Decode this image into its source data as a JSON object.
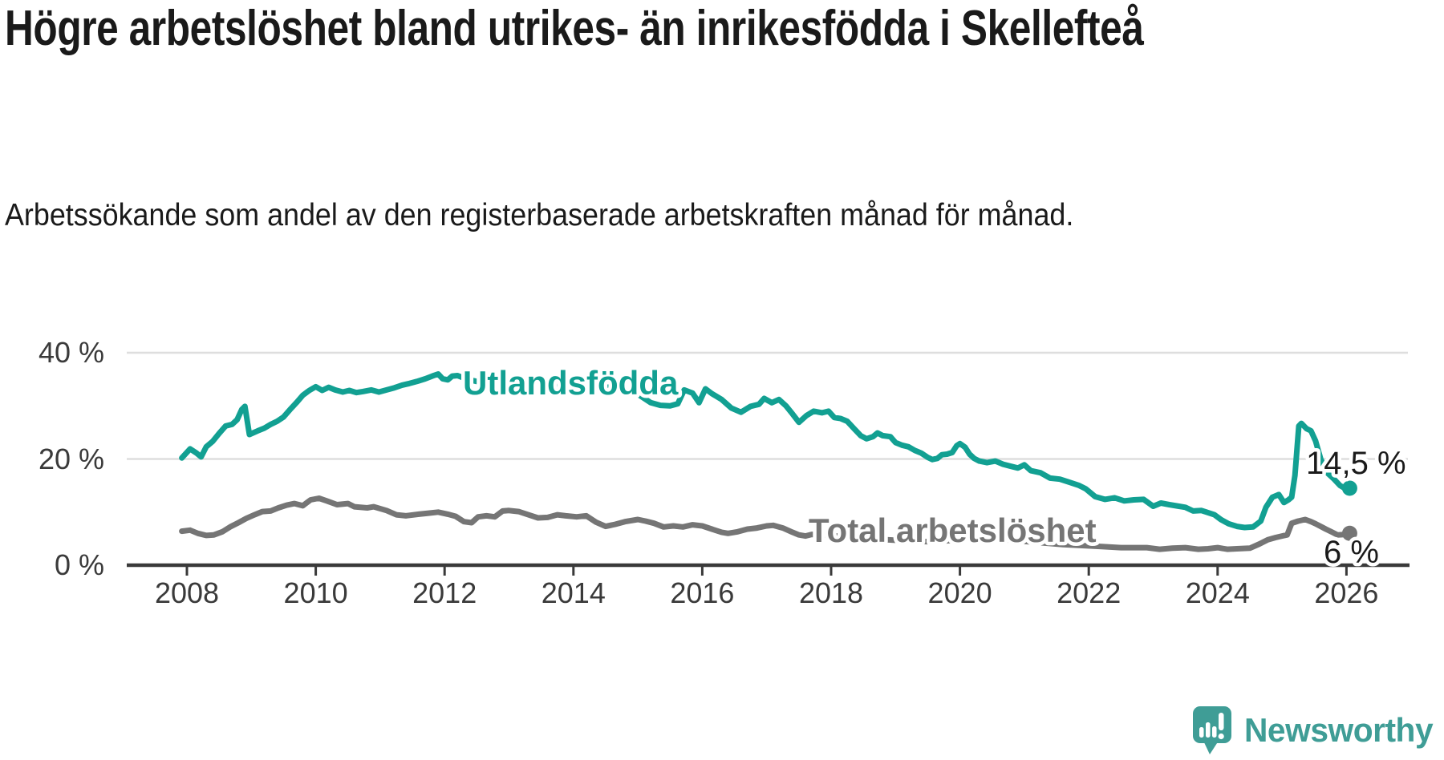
{
  "header": {
    "title": "Högre arbetslöshet bland utrikes- än inrikesfödda i Skellefteå",
    "subtitle": "Arbetssökande som andel av den registerbaserade arbetskraften månad för månad."
  },
  "footer": {
    "brand": "Newsworthy",
    "logo_icon": "newsworthy-speech-bubble-chart-icon"
  },
  "colors": {
    "foreign_born_line": "#12a092",
    "total_line": "#757575",
    "axis": "#3a3a3a",
    "gridline": "#dedede",
    "text": "#1a1a1a",
    "brand_teal": "#3f9d96"
  },
  "chart_data": {
    "type": "line",
    "title": "Högre arbetslöshet bland utrikes- än inrikesfödda i Skellefteå",
    "xlabel": "",
    "ylabel": "Arbetssökande som andel av den registerbaserade arbetskraften",
    "x_unit": "year (monthly observations)",
    "xlim": [
      2007.8,
      2026.35
    ],
    "ylim": [
      0,
      42
    ],
    "grid": "horizontal",
    "legend_position": "inline-labels",
    "yticks": [
      {
        "v": 0,
        "label": "0 %"
      },
      {
        "v": 20,
        "label": "20 %"
      },
      {
        "v": 40,
        "label": "40 %"
      }
    ],
    "xticks": [
      {
        "v": 2008,
        "label": "2008"
      },
      {
        "v": 2010,
        "label": "2010"
      },
      {
        "v": 2012,
        "label": "2012"
      },
      {
        "v": 2014,
        "label": "2014"
      },
      {
        "v": 2016,
        "label": "2016"
      },
      {
        "v": 2018,
        "label": "2018"
      },
      {
        "v": 2020,
        "label": "2020"
      },
      {
        "v": 2022,
        "label": "2022"
      },
      {
        "v": 2024,
        "label": "2024"
      },
      {
        "v": 2026,
        "label": "2026"
      }
    ],
    "series": [
      {
        "name": "Utlandsfödda",
        "color": "#12a092",
        "end_value": 14.5,
        "end_label": "14,5 %",
        "points": [
          [
            2007.92,
            20.2
          ],
          [
            2008.05,
            21.9
          ],
          [
            2008.15,
            21.1
          ],
          [
            2008.22,
            20.4
          ],
          [
            2008.3,
            22.3
          ],
          [
            2008.4,
            23.3
          ],
          [
            2008.5,
            24.8
          ],
          [
            2008.6,
            26.2
          ],
          [
            2008.7,
            26.5
          ],
          [
            2008.78,
            27.4
          ],
          [
            2008.85,
            29.3
          ],
          [
            2008.9,
            29.9
          ],
          [
            2008.97,
            24.6
          ],
          [
            2009.1,
            25.3
          ],
          [
            2009.2,
            25.8
          ],
          [
            2009.3,
            26.5
          ],
          [
            2009.4,
            27.1
          ],
          [
            2009.5,
            27.9
          ],
          [
            2009.6,
            29.3
          ],
          [
            2009.7,
            30.6
          ],
          [
            2009.8,
            32.0
          ],
          [
            2009.9,
            32.9
          ],
          [
            2010.0,
            33.6
          ],
          [
            2010.1,
            32.9
          ],
          [
            2010.2,
            33.5
          ],
          [
            2010.3,
            33.0
          ],
          [
            2010.42,
            32.6
          ],
          [
            2010.52,
            32.9
          ],
          [
            2010.63,
            32.5
          ],
          [
            2010.73,
            32.7
          ],
          [
            2010.86,
            33.0
          ],
          [
            2010.98,
            32.6
          ],
          [
            2011.1,
            33.0
          ],
          [
            2011.22,
            33.4
          ],
          [
            2011.34,
            33.9
          ],
          [
            2011.45,
            34.2
          ],
          [
            2011.57,
            34.6
          ],
          [
            2011.7,
            35.1
          ],
          [
            2011.81,
            35.6
          ],
          [
            2011.9,
            36.0
          ],
          [
            2011.97,
            35.1
          ],
          [
            2012.05,
            34.9
          ],
          [
            2012.12,
            35.6
          ],
          [
            2012.2,
            35.7
          ],
          [
            2012.35,
            35.0
          ],
          [
            2012.5,
            34.6
          ],
          [
            2012.65,
            34.9
          ],
          [
            2012.8,
            34.3
          ],
          [
            2013.0,
            34.6
          ],
          [
            2013.2,
            34.0
          ],
          [
            2013.4,
            34.3
          ],
          [
            2013.6,
            33.8
          ],
          [
            2013.8,
            34.1
          ],
          [
            2014.0,
            33.6
          ],
          [
            2014.2,
            33.8
          ],
          [
            2014.4,
            33.3
          ],
          [
            2014.6,
            33.6
          ],
          [
            2014.8,
            33.0
          ],
          [
            2015.0,
            32.2
          ],
          [
            2015.2,
            30.6
          ],
          [
            2015.35,
            30.1
          ],
          [
            2015.5,
            30.0
          ],
          [
            2015.62,
            30.4
          ],
          [
            2015.72,
            33.0
          ],
          [
            2015.85,
            32.4
          ],
          [
            2015.95,
            30.6
          ],
          [
            2016.05,
            33.2
          ],
          [
            2016.15,
            32.3
          ],
          [
            2016.3,
            31.2
          ],
          [
            2016.45,
            29.6
          ],
          [
            2016.6,
            28.8
          ],
          [
            2016.75,
            29.9
          ],
          [
            2016.88,
            30.3
          ],
          [
            2016.96,
            31.4
          ],
          [
            2017.08,
            30.6
          ],
          [
            2017.19,
            31.2
          ],
          [
            2017.3,
            30.0
          ],
          [
            2017.4,
            28.5
          ],
          [
            2017.5,
            26.9
          ],
          [
            2017.62,
            28.2
          ],
          [
            2017.73,
            29.0
          ],
          [
            2017.86,
            28.7
          ],
          [
            2017.96,
            29.0
          ],
          [
            2018.05,
            27.8
          ],
          [
            2018.15,
            27.6
          ],
          [
            2018.25,
            27.1
          ],
          [
            2018.35,
            25.8
          ],
          [
            2018.46,
            24.4
          ],
          [
            2018.55,
            23.8
          ],
          [
            2018.65,
            24.2
          ],
          [
            2018.72,
            24.9
          ],
          [
            2018.8,
            24.4
          ],
          [
            2018.92,
            24.2
          ],
          [
            2019.0,
            23.1
          ],
          [
            2019.1,
            22.6
          ],
          [
            2019.2,
            22.3
          ],
          [
            2019.3,
            21.6
          ],
          [
            2019.4,
            21.1
          ],
          [
            2019.5,
            20.3
          ],
          [
            2019.57,
            19.9
          ],
          [
            2019.65,
            20.1
          ],
          [
            2019.72,
            20.8
          ],
          [
            2019.8,
            20.9
          ],
          [
            2019.88,
            21.2
          ],
          [
            2019.95,
            22.5
          ],
          [
            2020.0,
            22.9
          ],
          [
            2020.08,
            22.2
          ],
          [
            2020.15,
            20.9
          ],
          [
            2020.22,
            20.1
          ],
          [
            2020.3,
            19.6
          ],
          [
            2020.42,
            19.3
          ],
          [
            2020.55,
            19.6
          ],
          [
            2020.67,
            19.0
          ],
          [
            2020.8,
            18.6
          ],
          [
            2020.9,
            18.3
          ],
          [
            2021.0,
            18.9
          ],
          [
            2021.1,
            17.8
          ],
          [
            2021.25,
            17.4
          ],
          [
            2021.4,
            16.4
          ],
          [
            2021.55,
            16.2
          ],
          [
            2021.7,
            15.6
          ],
          [
            2021.85,
            15.0
          ],
          [
            2021.95,
            14.4
          ],
          [
            2022.1,
            12.9
          ],
          [
            2022.25,
            12.4
          ],
          [
            2022.4,
            12.7
          ],
          [
            2022.55,
            12.1
          ],
          [
            2022.7,
            12.3
          ],
          [
            2022.85,
            12.4
          ],
          [
            2023.0,
            11.1
          ],
          [
            2023.12,
            11.7
          ],
          [
            2023.25,
            11.4
          ],
          [
            2023.4,
            11.1
          ],
          [
            2023.5,
            10.9
          ],
          [
            2023.62,
            10.2
          ],
          [
            2023.75,
            10.3
          ],
          [
            2023.85,
            9.9
          ],
          [
            2023.95,
            9.5
          ],
          [
            2024.05,
            8.6
          ],
          [
            2024.17,
            7.8
          ],
          [
            2024.3,
            7.3
          ],
          [
            2024.42,
            7.1
          ],
          [
            2024.55,
            7.2
          ],
          [
            2024.67,
            8.3
          ],
          [
            2024.75,
            10.9
          ],
          [
            2024.85,
            12.8
          ],
          [
            2024.95,
            13.3
          ],
          [
            2025.03,
            11.8
          ],
          [
            2025.1,
            12.3
          ],
          [
            2025.15,
            12.8
          ],
          [
            2025.2,
            16.9
          ],
          [
            2025.26,
            26.2
          ],
          [
            2025.3,
            26.7
          ],
          [
            2025.38,
            25.7
          ],
          [
            2025.45,
            25.3
          ],
          [
            2025.52,
            23.4
          ],
          [
            2025.6,
            20.0
          ],
          [
            2025.7,
            17.4
          ],
          [
            2025.8,
            16.3
          ],
          [
            2025.9,
            15.0
          ],
          [
            2026.0,
            14.3
          ],
          [
            2026.05,
            14.5
          ]
        ]
      },
      {
        "name": "Total arbetslöshet",
        "color": "#757575",
        "end_value": 6,
        "end_label": "6 %",
        "points": [
          [
            2007.92,
            6.4
          ],
          [
            2008.05,
            6.6
          ],
          [
            2008.17,
            6.0
          ],
          [
            2008.3,
            5.6
          ],
          [
            2008.42,
            5.7
          ],
          [
            2008.55,
            6.3
          ],
          [
            2008.67,
            7.2
          ],
          [
            2008.8,
            8.0
          ],
          [
            2008.92,
            8.8
          ],
          [
            2009.05,
            9.5
          ],
          [
            2009.17,
            10.1
          ],
          [
            2009.3,
            10.2
          ],
          [
            2009.42,
            10.8
          ],
          [
            2009.55,
            11.3
          ],
          [
            2009.67,
            11.6
          ],
          [
            2009.8,
            11.2
          ],
          [
            2009.92,
            12.3
          ],
          [
            2010.05,
            12.6
          ],
          [
            2010.17,
            12.1
          ],
          [
            2010.33,
            11.4
          ],
          [
            2010.5,
            11.6
          ],
          [
            2010.6,
            11.0
          ],
          [
            2010.8,
            10.8
          ],
          [
            2010.9,
            11.0
          ],
          [
            2011.1,
            10.3
          ],
          [
            2011.25,
            9.5
          ],
          [
            2011.4,
            9.3
          ],
          [
            2011.6,
            9.6
          ],
          [
            2011.75,
            9.8
          ],
          [
            2011.9,
            10.0
          ],
          [
            2012.05,
            9.6
          ],
          [
            2012.17,
            9.2
          ],
          [
            2012.3,
            8.2
          ],
          [
            2012.42,
            8.0
          ],
          [
            2012.52,
            9.1
          ],
          [
            2012.65,
            9.3
          ],
          [
            2012.78,
            9.1
          ],
          [
            2012.9,
            10.2
          ],
          [
            2013.0,
            10.3
          ],
          [
            2013.15,
            10.1
          ],
          [
            2013.3,
            9.5
          ],
          [
            2013.45,
            8.9
          ],
          [
            2013.6,
            9.0
          ],
          [
            2013.75,
            9.5
          ],
          [
            2013.88,
            9.3
          ],
          [
            2014.05,
            9.1
          ],
          [
            2014.2,
            9.3
          ],
          [
            2014.35,
            8.1
          ],
          [
            2014.5,
            7.3
          ],
          [
            2014.65,
            7.7
          ],
          [
            2014.8,
            8.2
          ],
          [
            2015.0,
            8.6
          ],
          [
            2015.12,
            8.3
          ],
          [
            2015.25,
            7.9
          ],
          [
            2015.4,
            7.2
          ],
          [
            2015.55,
            7.4
          ],
          [
            2015.7,
            7.2
          ],
          [
            2015.85,
            7.6
          ],
          [
            2016.0,
            7.4
          ],
          [
            2016.15,
            6.8
          ],
          [
            2016.3,
            6.2
          ],
          [
            2016.4,
            6.0
          ],
          [
            2016.55,
            6.3
          ],
          [
            2016.7,
            6.8
          ],
          [
            2016.85,
            7.0
          ],
          [
            2017.0,
            7.4
          ],
          [
            2017.1,
            7.5
          ],
          [
            2017.25,
            7.0
          ],
          [
            2017.4,
            6.2
          ],
          [
            2017.5,
            5.7
          ],
          [
            2017.6,
            5.5
          ],
          [
            2017.7,
            5.8
          ],
          [
            2017.9,
            5.7
          ],
          [
            2018.1,
            5.5
          ],
          [
            2018.4,
            5.1
          ],
          [
            2018.7,
            4.9
          ],
          [
            2019.0,
            4.7
          ],
          [
            2019.3,
            4.5
          ],
          [
            2019.6,
            4.4
          ],
          [
            2019.9,
            4.7
          ],
          [
            2020.1,
            5.2
          ],
          [
            2020.4,
            5.0
          ],
          [
            2020.7,
            4.8
          ],
          [
            2021.0,
            4.5
          ],
          [
            2021.3,
            4.2
          ],
          [
            2021.6,
            3.9
          ],
          [
            2021.9,
            3.7
          ],
          [
            2022.2,
            3.5
          ],
          [
            2022.5,
            3.3
          ],
          [
            2022.7,
            3.3
          ],
          [
            2022.9,
            3.3
          ],
          [
            2023.1,
            3.0
          ],
          [
            2023.3,
            3.2
          ],
          [
            2023.5,
            3.3
          ],
          [
            2023.7,
            3.0
          ],
          [
            2023.85,
            3.1
          ],
          [
            2024.0,
            3.3
          ],
          [
            2024.15,
            3.0
          ],
          [
            2024.3,
            3.1
          ],
          [
            2024.5,
            3.2
          ],
          [
            2024.65,
            4.0
          ],
          [
            2024.78,
            4.8
          ],
          [
            2024.9,
            5.2
          ],
          [
            2025.0,
            5.5
          ],
          [
            2025.08,
            5.7
          ],
          [
            2025.15,
            7.9
          ],
          [
            2025.25,
            8.3
          ],
          [
            2025.36,
            8.6
          ],
          [
            2025.45,
            8.2
          ],
          [
            2025.52,
            7.8
          ],
          [
            2025.6,
            7.3
          ],
          [
            2025.68,
            6.8
          ],
          [
            2025.78,
            6.2
          ],
          [
            2025.86,
            5.7
          ],
          [
            2026.0,
            5.8
          ],
          [
            2026.05,
            6.0
          ]
        ]
      }
    ]
  }
}
